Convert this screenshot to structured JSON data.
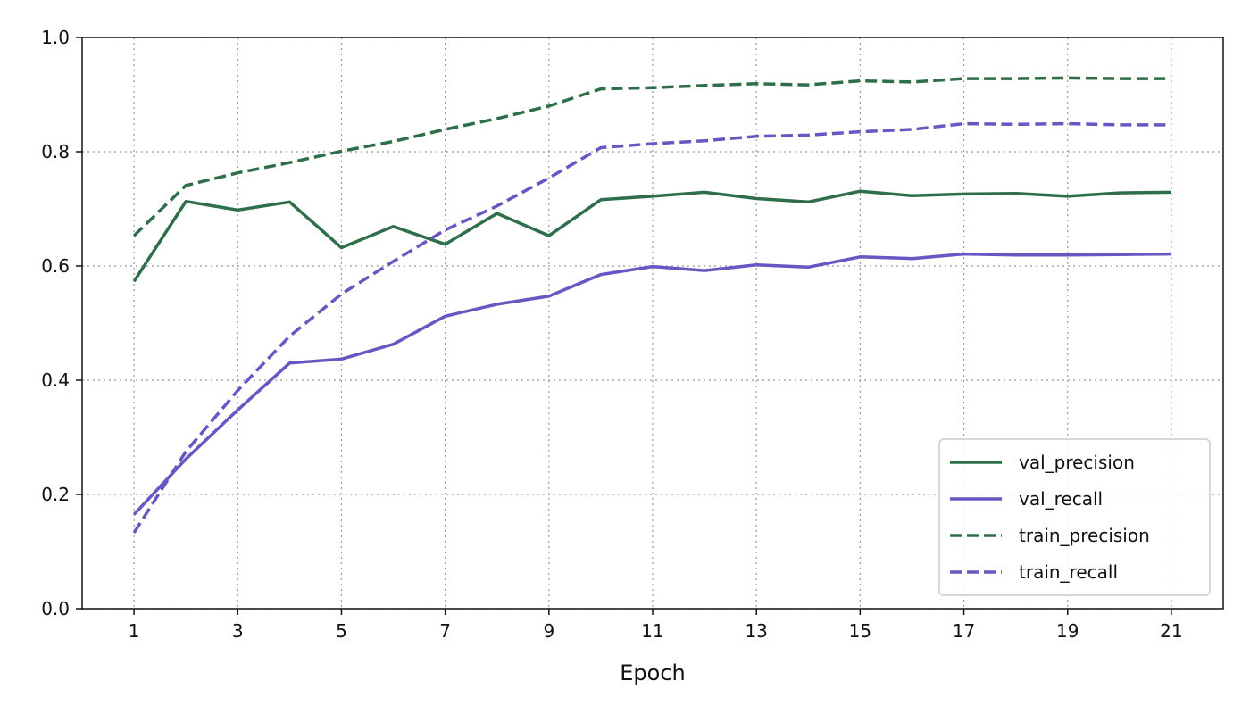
{
  "chart_data": {
    "type": "line",
    "title": "",
    "xlabel": "Epoch",
    "ylabel": "",
    "x": [
      1,
      2,
      3,
      4,
      5,
      6,
      7,
      8,
      9,
      10,
      11,
      12,
      13,
      14,
      15,
      16,
      17,
      18,
      19,
      20,
      21
    ],
    "xticks": [
      "1",
      "3",
      "5",
      "7",
      "9",
      "11",
      "13",
      "15",
      "17",
      "19",
      "21"
    ],
    "yticks": [
      "0.0",
      "0.2",
      "0.4",
      "0.6",
      "0.8",
      "1.0"
    ],
    "xlim": [
      0.0,
      22.0
    ],
    "ylim": [
      0.0,
      1.0
    ],
    "grid": true,
    "legend_position": "lower-right",
    "series": [
      {
        "name": "val_precision",
        "color": "#2e6e4a",
        "style": "solid",
        "values": [
          0.573,
          0.713,
          0.698,
          0.712,
          0.632,
          0.669,
          0.638,
          0.692,
          0.653,
          0.716,
          0.722,
          0.729,
          0.718,
          0.712,
          0.731,
          0.723,
          0.726,
          0.727,
          0.722,
          0.728,
          0.729
        ]
      },
      {
        "name": "val_recall",
        "color": "#6a55c2",
        "style": "solid",
        "values": [
          0.165,
          0.262,
          0.348,
          0.43,
          0.437,
          0.463,
          0.512,
          0.533,
          0.547,
          0.585,
          0.599,
          0.592,
          0.602,
          0.598,
          0.616,
          0.613,
          0.621,
          0.619,
          0.619,
          0.62,
          0.621
        ]
      },
      {
        "name": "train_precision",
        "color": "#2e6e4a",
        "style": "dashed",
        "values": [
          0.653,
          0.741,
          0.763,
          0.781,
          0.801,
          0.818,
          0.839,
          0.858,
          0.88,
          0.91,
          0.912,
          0.916,
          0.919,
          0.917,
          0.924,
          0.922,
          0.928,
          0.928,
          0.929,
          0.928,
          0.928
        ]
      },
      {
        "name": "train_recall",
        "color": "#6a55c2",
        "style": "dashed",
        "values": [
          0.133,
          0.275,
          0.382,
          0.477,
          0.551,
          0.608,
          0.663,
          0.705,
          0.754,
          0.807,
          0.814,
          0.819,
          0.827,
          0.829,
          0.835,
          0.839,
          0.849,
          0.848,
          0.849,
          0.847,
          0.847
        ]
      }
    ]
  }
}
